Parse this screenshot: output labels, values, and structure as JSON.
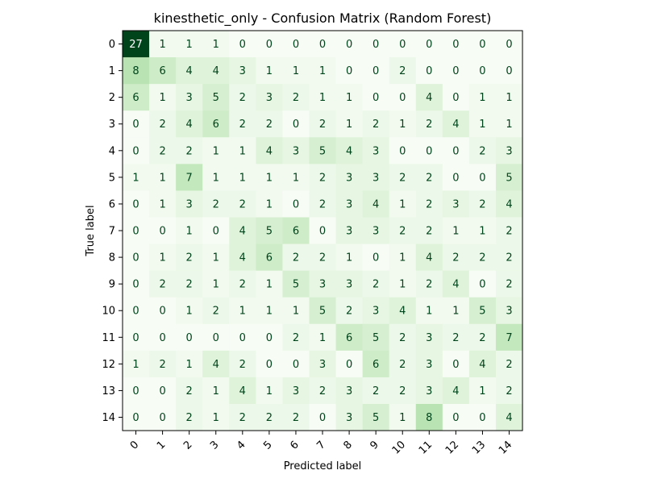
{
  "chart_data": {
    "type": "heatmap",
    "title": "kinesthetic_only - Confusion Matrix (Random Forest)",
    "xlabel": "Predicted label",
    "ylabel": "True label",
    "x_tick_labels": [
      "0",
      "1",
      "2",
      "3",
      "4",
      "5",
      "6",
      "7",
      "8",
      "9",
      "10",
      "11",
      "12",
      "13",
      "14"
    ],
    "y_tick_labels": [
      "0",
      "1",
      "2",
      "3",
      "4",
      "5",
      "6",
      "7",
      "8",
      "9",
      "10",
      "11",
      "12",
      "13",
      "14"
    ],
    "colormap": "Greens",
    "value_range": [
      0,
      27
    ],
    "matrix": [
      [
        27,
        1,
        1,
        1,
        0,
        0,
        0,
        0,
        0,
        0,
        0,
        0,
        0,
        0,
        0
      ],
      [
        8,
        6,
        4,
        4,
        3,
        1,
        1,
        1,
        0,
        0,
        2,
        0,
        0,
        0,
        0
      ],
      [
        6,
        1,
        3,
        5,
        2,
        3,
        2,
        1,
        1,
        0,
        0,
        4,
        0,
        1,
        1
      ],
      [
        0,
        2,
        4,
        6,
        2,
        2,
        0,
        2,
        1,
        2,
        1,
        2,
        4,
        1,
        1
      ],
      [
        0,
        2,
        2,
        1,
        1,
        4,
        3,
        5,
        4,
        3,
        0,
        0,
        0,
        2,
        3
      ],
      [
        1,
        1,
        7,
        1,
        1,
        1,
        1,
        2,
        3,
        3,
        2,
        2,
        0,
        0,
        5
      ],
      [
        0,
        1,
        3,
        2,
        2,
        1,
        0,
        2,
        3,
        4,
        1,
        2,
        3,
        2,
        4
      ],
      [
        0,
        0,
        1,
        0,
        4,
        5,
        6,
        0,
        3,
        3,
        2,
        2,
        1,
        1,
        2
      ],
      [
        0,
        1,
        2,
        1,
        4,
        6,
        2,
        2,
        1,
        0,
        1,
        4,
        2,
        2,
        2
      ],
      [
        0,
        2,
        2,
        1,
        2,
        1,
        5,
        3,
        3,
        2,
        1,
        2,
        4,
        0,
        2
      ],
      [
        0,
        0,
        1,
        2,
        1,
        1,
        1,
        5,
        2,
        3,
        4,
        1,
        1,
        5,
        3
      ],
      [
        0,
        0,
        0,
        0,
        0,
        0,
        2,
        1,
        6,
        5,
        2,
        3,
        2,
        2,
        7
      ],
      [
        1,
        2,
        1,
        4,
        2,
        0,
        0,
        3,
        0,
        6,
        2,
        3,
        0,
        4,
        2
      ],
      [
        0,
        0,
        2,
        1,
        4,
        1,
        3,
        2,
        3,
        2,
        2,
        3,
        4,
        1,
        2
      ],
      [
        0,
        0,
        2,
        1,
        2,
        2,
        2,
        0,
        3,
        5,
        1,
        8,
        0,
        0,
        4
      ]
    ]
  }
}
